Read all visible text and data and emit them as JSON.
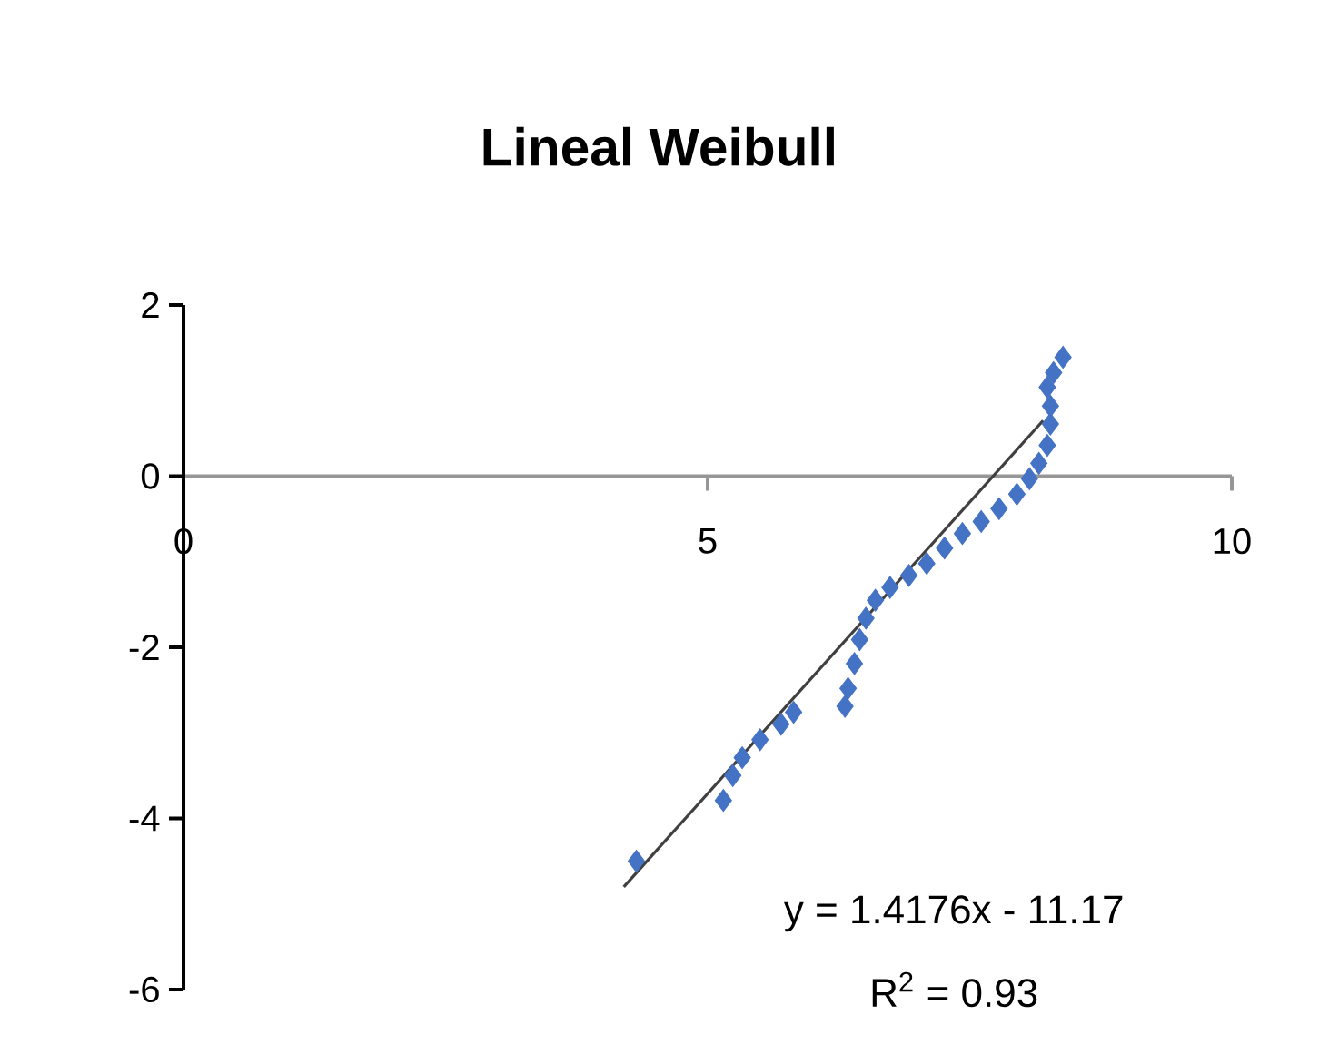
{
  "chart_data": {
    "type": "scatter",
    "title": "Lineal Weibull",
    "xlim": [
      0,
      10
    ],
    "ylim": [
      -6,
      2
    ],
    "xticks": [
      0,
      5,
      10
    ],
    "yticks": [
      -6,
      -4,
      -2,
      0,
      2
    ],
    "marker": "diamond",
    "annotations": [
      "y = 1.4176x - 11.17",
      "R$^{2}$ = 0.93"
    ],
    "series": [
      {
        "color": "#4472c4",
        "x": [
          4.32,
          5.15,
          5.24,
          5.33,
          5.5,
          5.7,
          5.82,
          6.31,
          6.34,
          6.4,
          6.45,
          6.51,
          6.6,
          6.74,
          6.92,
          7.09,
          7.26,
          7.43,
          7.61,
          7.78,
          7.95,
          8.07,
          8.16,
          8.24,
          8.27,
          8.27,
          8.24,
          8.3,
          8.39
        ],
        "values": [
          -4.5,
          -3.79,
          -3.5,
          -3.29,
          -3.08,
          -2.9,
          -2.76,
          -2.69,
          -2.48,
          -2.19,
          -1.91,
          -1.66,
          -1.45,
          -1.3,
          -1.16,
          -1.02,
          -0.84,
          -0.67,
          -0.53,
          -0.38,
          -0.21,
          -0.03,
          0.15,
          0.36,
          0.61,
          0.82,
          1.04,
          1.21,
          1.39
        ]
      },
      {
        "type": "line",
        "color": "#404040",
        "marker": "none",
        "x": [
          4.2,
          8.2
        ],
        "values": [
          -4.8,
          0.65
        ]
      }
    ]
  }
}
